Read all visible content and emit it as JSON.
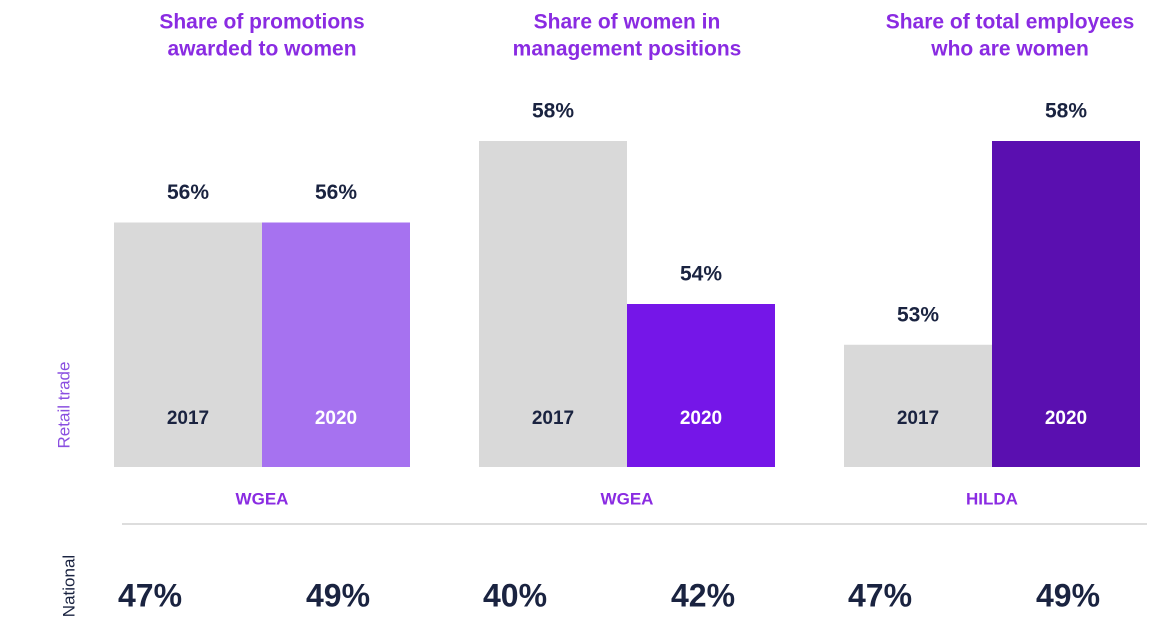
{
  "row_labels": {
    "retail": "Retail trade",
    "national": "National"
  },
  "chart_data": [
    {
      "type": "bar",
      "title": [
        "Share of promotions",
        "awarded to women"
      ],
      "categories": [
        "2017",
        "2020"
      ],
      "values": [
        56,
        56
      ],
      "value_labels": [
        "56%",
        "56%"
      ],
      "colors": [
        "#d9d9d9",
        "#a672f0"
      ],
      "ylim": [
        50,
        58
      ],
      "source": "WGEA",
      "national": [
        "47%",
        "49%"
      ]
    },
    {
      "type": "bar",
      "title": [
        "Share of women in",
        "management positions"
      ],
      "categories": [
        "2017",
        "2020"
      ],
      "values": [
        58,
        54
      ],
      "value_labels": [
        "58%",
        "54%"
      ],
      "colors": [
        "#d9d9d9",
        "#7516e8"
      ],
      "ylim": [
        50,
        58
      ],
      "source": "WGEA",
      "national": [
        "40%",
        "42%"
      ]
    },
    {
      "type": "bar",
      "title": [
        "Share of total employees",
        "who are women"
      ],
      "categories": [
        "2017",
        "2020"
      ],
      "values": [
        53,
        58
      ],
      "value_labels": [
        "53%",
        "58%"
      ],
      "colors": [
        "#d9d9d9",
        "#5a0fb0"
      ],
      "ylim": [
        50,
        58
      ],
      "source": "HILDA",
      "national": [
        "47%",
        "49%"
      ]
    }
  ]
}
